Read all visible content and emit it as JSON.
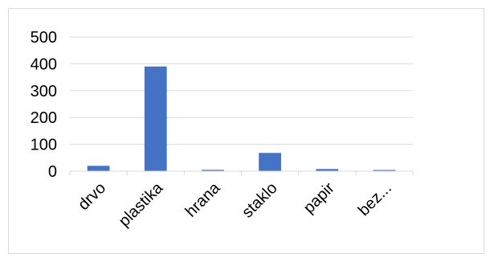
{
  "chart_data": {
    "type": "bar",
    "categories": [
      "drvo",
      "plastika",
      "hrana",
      "staklo",
      "papir",
      "bez..."
    ],
    "series": [
      {
        "values": [
          20,
          390,
          5,
          68,
          8,
          1
        ],
        "color": "#4472c4"
      }
    ],
    "title": "",
    "xlabel": "",
    "ylabel": "",
    "ylim": [
      0,
      500
    ],
    "yticks": [
      0,
      100,
      200,
      300,
      400,
      500
    ],
    "grid": true,
    "legend": "none"
  }
}
